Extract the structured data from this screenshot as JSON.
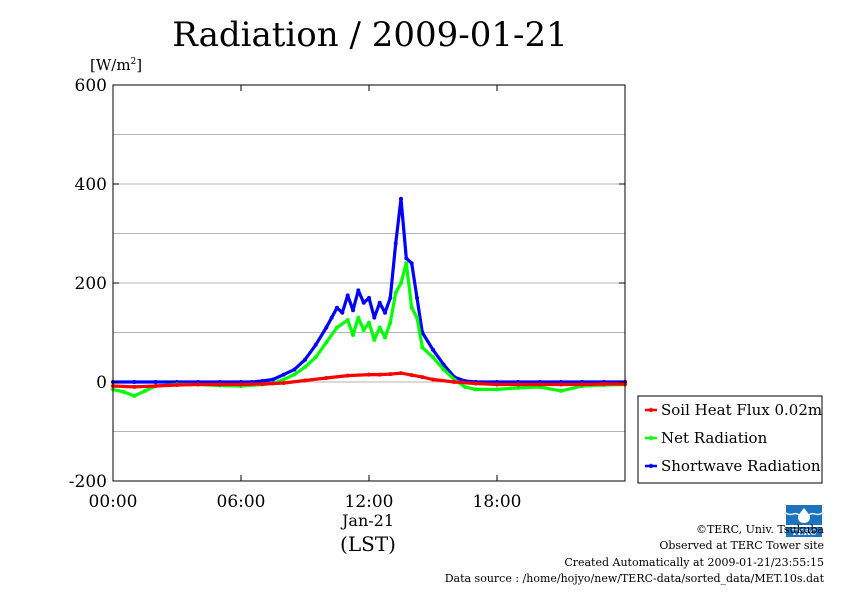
{
  "chart_data": {
    "type": "line",
    "title": "Radiation / 2009-01-21",
    "ylabel": "[W/m",
    "ylabel_superscript": "2",
    "ylabel_suffix": "]",
    "xlabel": "(LST)",
    "x_date_label": "Jan-21",
    "ylim": [
      -200,
      600
    ],
    "xlim": [
      0,
      24
    ],
    "y_ticks": [
      -200,
      0,
      200,
      400,
      600
    ],
    "x_ticks": [
      0,
      6,
      12,
      18
    ],
    "x_tick_labels": [
      "00:00",
      "06:00",
      "12:00",
      "18:00"
    ],
    "grid": true,
    "legend_position": "right",
    "series": [
      {
        "name": "Soil Heat Flux 0.02m",
        "color": "#ff0000",
        "x": [
          0,
          1,
          2,
          3,
          4,
          5,
          6,
          7,
          8,
          9,
          10,
          11,
          12,
          12.5,
          13,
          13.5,
          14,
          14.5,
          15,
          16,
          17,
          18,
          19,
          20,
          21,
          22,
          23,
          24
        ],
        "y": [
          -8,
          -10,
          -8,
          -6,
          -5,
          -5,
          -5,
          -4,
          -2,
          3,
          8,
          13,
          15,
          15,
          16,
          18,
          14,
          10,
          5,
          0,
          -3,
          -5,
          -5,
          -5,
          -5,
          -5,
          -4,
          -4
        ]
      },
      {
        "name": "Net Radiation",
        "color": "#00ff00",
        "x": [
          0,
          0.5,
          1,
          1.5,
          2,
          3,
          4,
          5,
          6,
          7,
          7.5,
          8,
          8.5,
          9,
          9.5,
          10,
          10.5,
          11,
          11.25,
          11.5,
          11.75,
          12,
          12.25,
          12.5,
          12.75,
          13,
          13.25,
          13.5,
          13.75,
          14,
          14.25,
          14.5,
          15,
          15.5,
          16,
          16.5,
          17,
          18,
          19,
          20,
          21,
          22,
          23,
          24
        ],
        "y": [
          -15,
          -20,
          -28,
          -18,
          -8,
          -5,
          -5,
          -7,
          -8,
          -5,
          -3,
          5,
          15,
          30,
          50,
          80,
          110,
          125,
          95,
          130,
          105,
          120,
          85,
          110,
          90,
          120,
          180,
          200,
          240,
          150,
          130,
          70,
          50,
          25,
          5,
          -10,
          -15,
          -15,
          -12,
          -10,
          -18,
          -8,
          -6,
          -5
        ]
      },
      {
        "name": "Shortwave Radiation",
        "color": "#0000ff",
        "x": [
          0,
          1,
          2,
          3,
          4,
          5,
          6,
          6.5,
          7,
          7.5,
          8,
          8.5,
          9,
          9.5,
          10,
          10.25,
          10.5,
          10.75,
          11,
          11.25,
          11.5,
          11.75,
          12,
          12.25,
          12.5,
          12.75,
          13,
          13.25,
          13.5,
          13.75,
          14,
          14.25,
          14.5,
          15,
          15.5,
          16,
          16.5,
          17,
          18,
          19,
          20,
          21,
          22,
          23,
          24
        ],
        "y": [
          0,
          0,
          0,
          0,
          0,
          0,
          0,
          0,
          2,
          5,
          15,
          25,
          45,
          75,
          110,
          130,
          150,
          140,
          175,
          145,
          185,
          160,
          170,
          130,
          160,
          140,
          170,
          280,
          370,
          250,
          240,
          170,
          100,
          65,
          35,
          10,
          2,
          0,
          0,
          0,
          0,
          0,
          0,
          0,
          0
        ]
      }
    ]
  },
  "footer": {
    "copyright": "©TERC, Univ. Tsukuba",
    "observed": "Observed at TERC Tower site",
    "created": "Created Automatically at 2009-01-21/23:55:15",
    "source": "Data source : /home/hojyo/new/TERC-data/sorted_data/MET.10s.dat"
  },
  "logo": {
    "text": "TERC",
    "color": "#1e73be"
  }
}
